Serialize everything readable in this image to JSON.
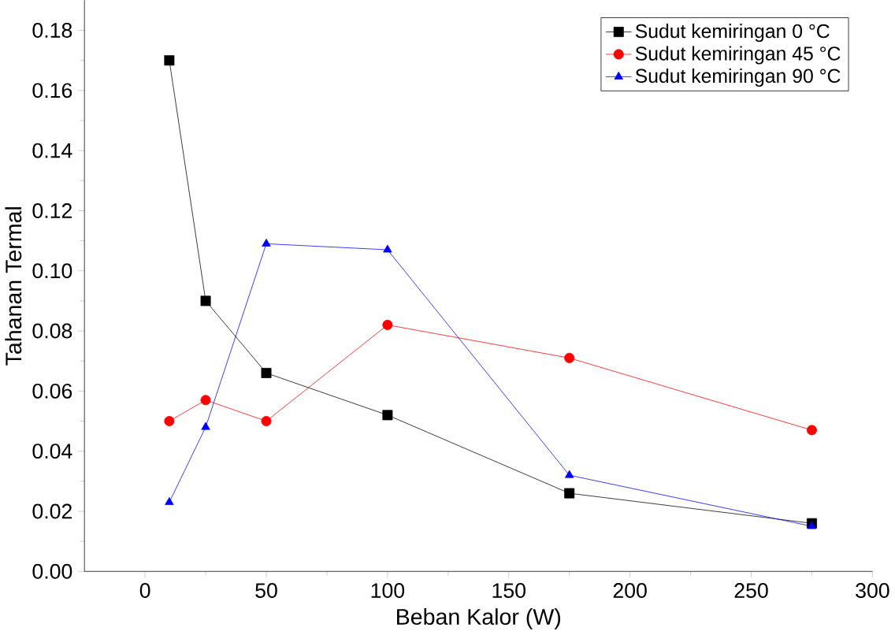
{
  "chart_data": {
    "type": "line",
    "xlabel": "Beban Kalor (W)",
    "ylabel": "Tahanan Termal",
    "xlim": [
      -25,
      300
    ],
    "ylim": [
      0,
      0.19
    ],
    "xticks": [
      0,
      50,
      100,
      150,
      200,
      250,
      300
    ],
    "yticks": [
      {
        "value": 0,
        "label": "0.00"
      },
      {
        "value": 0.02,
        "label": "0.02"
      },
      {
        "value": 0.04,
        "label": "0.04"
      },
      {
        "value": 0.06,
        "label": "0.06"
      },
      {
        "value": 0.08,
        "label": "0.08"
      },
      {
        "value": 0.1,
        "label": "0.10"
      },
      {
        "value": 0.12,
        "label": "0.12"
      },
      {
        "value": 0.14,
        "label": "0.14"
      },
      {
        "value": 0.16,
        "label": "0.16"
      },
      {
        "value": 0.18,
        "label": "0.18"
      }
    ],
    "x": [
      10,
      25,
      50,
      100,
      175,
      275
    ],
    "legend": "top right",
    "grid": false,
    "series": [
      {
        "name": "Sudut kemiringan  0 °C",
        "color": "#000000",
        "marker": "square",
        "values": [
          0.17,
          0.09,
          0.066,
          0.052,
          0.026,
          0.016
        ]
      },
      {
        "name": "Sudut kemiringan  45 °C",
        "color": "#ff0000",
        "marker": "circle",
        "values": [
          0.05,
          0.057,
          0.05,
          0.082,
          0.071,
          0.047
        ]
      },
      {
        "name": "Sudut kemiringan 90 °C",
        "color": "#0000ff",
        "marker": "triangle",
        "values": [
          0.023,
          0.048,
          0.109,
          0.107,
          0.032,
          0.015
        ]
      }
    ]
  }
}
